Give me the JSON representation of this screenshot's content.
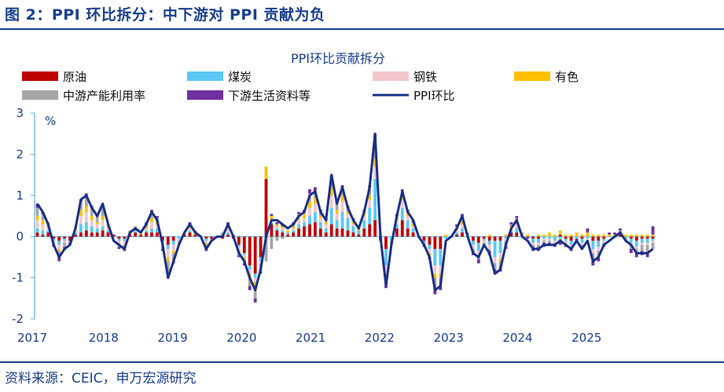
{
  "figure_title": "图 2：PPI 环比拆分：中下游对 PPI 贡献为负",
  "source_note": "资料来源：CEIC，申万宏源研究",
  "chart_data": {
    "type": "bar",
    "title": "PPI环比贡献拆分",
    "ylabel": "%",
    "ylim": [
      -2,
      3
    ],
    "yticks": [
      3,
      2,
      1,
      0,
      -1,
      -2
    ],
    "x_labels": [
      "2017",
      "2018",
      "2019",
      "2020",
      "2021",
      "2022",
      "2023",
      "2024",
      "2025"
    ],
    "stacked": true,
    "series_meta": [
      {
        "key": "crude",
        "name": "原油",
        "color": "#c00000",
        "style": "bar"
      },
      {
        "key": "coal",
        "name": "煤炭",
        "color": "#5bc8f5",
        "style": "bar"
      },
      {
        "key": "steel",
        "name": "钢铁",
        "color": "#f4c7cc",
        "style": "bar"
      },
      {
        "key": "nonferrous",
        "name": "有色",
        "color": "#ffc000",
        "style": "bar"
      },
      {
        "key": "midstream",
        "name": "中游产能利用率",
        "color": "#a6a6a6",
        "style": "bar"
      },
      {
        "key": "downstream",
        "name": "下游生活资料等",
        "color": "#7030a0",
        "style": "bar"
      },
      {
        "key": "ppi",
        "name": "PPI环比",
        "color": "#1a3088",
        "style": "line"
      }
    ],
    "ppi_mom": [
      0.8,
      0.6,
      0.3,
      -0.2,
      -0.5,
      -0.3,
      -0.2,
      0.2,
      0.9,
      1.0,
      0.7,
      0.5,
      0.8,
      0.3,
      -0.1,
      -0.2,
      -0.3,
      0.1,
      0.2,
      0.1,
      0.3,
      0.6,
      0.4,
      -0.2,
      -1.0,
      -0.6,
      -0.2,
      0.1,
      0.3,
      0.1,
      0.0,
      -0.3,
      -0.1,
      0.0,
      0.0,
      0.3,
      0.0,
      -0.4,
      -0.6,
      -1.0,
      -1.3,
      -0.8,
      0.0,
      0.4,
      0.4,
      0.3,
      0.2,
      0.3,
      0.5,
      0.6,
      1.0,
      1.1,
      0.6,
      0.4,
      1.5,
      0.8,
      1.2,
      0.7,
      0.4,
      0.2,
      0.6,
      1.2,
      2.5,
      0.0,
      -1.2,
      -0.2,
      0.5,
      1.1,
      0.6,
      0.4,
      0.0,
      -0.2,
      -0.5,
      -1.3,
      -1.2,
      -0.1,
      0.0,
      0.2,
      0.5,
      0.0,
      -0.4,
      -0.5,
      -0.2,
      -0.4,
      -0.9,
      -0.8,
      -0.2,
      0.2,
      0.4,
      0.0,
      -0.1,
      -0.3,
      -0.3,
      -0.2,
      -0.2,
      -0.2,
      -0.1,
      -0.2,
      -0.3,
      -0.1,
      -0.3,
      -0.1,
      -0.6,
      -0.5,
      -0.2,
      -0.1,
      0.0,
      0.1,
      -0.1,
      -0.2,
      -0.4,
      -0.4,
      -0.4,
      -0.3
    ],
    "bars": {
      "crude": [
        0.1,
        0.05,
        0.1,
        -0.05,
        -0.1,
        -0.05,
        -0.1,
        0.05,
        0.1,
        0.15,
        0.1,
        0.1,
        0.15,
        0.1,
        0.05,
        -0.05,
        -0.05,
        0.05,
        0.1,
        0.05,
        0.1,
        0.1,
        0.1,
        -0.1,
        -0.2,
        -0.1,
        0.0,
        0.05,
        0.1,
        0.05,
        0.0,
        -0.05,
        -0.05,
        0.0,
        -0.05,
        0.05,
        -0.05,
        -0.2,
        -0.4,
        -0.7,
        -0.9,
        -0.5,
        1.4,
        0.3,
        0.15,
        0.1,
        0.05,
        0.1,
        0.2,
        0.25,
        0.3,
        0.35,
        0.2,
        0.1,
        0.3,
        0.2,
        0.2,
        0.15,
        0.1,
        0.05,
        0.2,
        0.3,
        0.4,
        -0.1,
        -0.3,
        0.0,
        0.2,
        0.4,
        0.2,
        0.1,
        0.0,
        -0.1,
        -0.2,
        -0.3,
        -0.3,
        0.0,
        0.0,
        0.05,
        0.1,
        0.0,
        -0.1,
        -0.15,
        -0.05,
        -0.1,
        -0.1,
        -0.1,
        0.0,
        0.1,
        0.1,
        0.0,
        0.0,
        -0.05,
        -0.05,
        0.0,
        0.0,
        0.0,
        0.05,
        -0.05,
        -0.1,
        0.0,
        -0.05,
        0.0,
        -0.1,
        -0.1,
        -0.05,
        0.0,
        0.0,
        0.05,
        0.0,
        -0.05,
        -0.1,
        -0.05,
        -0.05,
        -0.05
      ],
      "coal": [
        0.1,
        0.1,
        0.05,
        -0.05,
        -0.1,
        -0.05,
        0.0,
        0.05,
        0.2,
        0.2,
        0.15,
        0.1,
        0.1,
        0.05,
        0.0,
        -0.05,
        -0.05,
        0.0,
        0.05,
        0.0,
        0.05,
        0.1,
        0.1,
        -0.05,
        -0.1,
        -0.1,
        -0.05,
        0.0,
        0.05,
        0.0,
        0.0,
        -0.05,
        0.0,
        0.0,
        0.0,
        0.05,
        0.0,
        -0.05,
        -0.05,
        -0.1,
        -0.1,
        -0.1,
        0.0,
        0.05,
        0.05,
        0.05,
        0.05,
        0.05,
        0.1,
        0.1,
        0.2,
        0.25,
        0.15,
        0.1,
        0.4,
        0.2,
        0.4,
        0.3,
        0.15,
        0.1,
        0.2,
        0.4,
        1.0,
        0.0,
        -0.4,
        -0.1,
        0.1,
        0.3,
        0.2,
        0.1,
        0.0,
        -0.05,
        -0.1,
        -0.4,
        -0.4,
        -0.05,
        0.0,
        0.05,
        0.1,
        0.0,
        -0.1,
        -0.2,
        -0.05,
        -0.1,
        -0.4,
        -0.3,
        -0.05,
        0.05,
        0.1,
        0.0,
        0.0,
        -0.1,
        -0.1,
        -0.05,
        -0.05,
        -0.1,
        -0.05,
        -0.05,
        -0.1,
        -0.05,
        -0.1,
        -0.05,
        -0.2,
        -0.15,
        -0.05,
        0.0,
        0.0,
        0.0,
        -0.05,
        -0.1,
        -0.15,
        -0.1,
        -0.1,
        -0.05
      ],
      "steel": [
        0.2,
        0.15,
        0.05,
        -0.05,
        -0.1,
        -0.05,
        0.0,
        0.05,
        0.2,
        0.25,
        0.15,
        0.1,
        0.15,
        0.05,
        -0.05,
        -0.05,
        -0.1,
        0.0,
        0.0,
        0.0,
        0.05,
        0.15,
        0.1,
        -0.05,
        -0.2,
        -0.15,
        -0.05,
        0.0,
        0.05,
        0.0,
        0.0,
        -0.05,
        0.0,
        0.0,
        0.0,
        0.1,
        0.0,
        -0.05,
        -0.05,
        -0.1,
        -0.1,
        -0.05,
        0.0,
        0.05,
        0.05,
        0.05,
        0.0,
        0.05,
        0.1,
        0.1,
        0.2,
        0.2,
        0.1,
        0.1,
        0.3,
        0.15,
        0.25,
        0.1,
        0.05,
        0.0,
        0.1,
        0.2,
        0.3,
        0.0,
        -0.2,
        0.0,
        0.1,
        0.2,
        0.1,
        0.05,
        0.0,
        0.0,
        -0.1,
        -0.2,
        -0.2,
        0.0,
        0.0,
        0.05,
        0.1,
        0.0,
        -0.1,
        -0.1,
        -0.05,
        -0.1,
        -0.15,
        -0.15,
        -0.05,
        0.05,
        0.1,
        0.0,
        0.0,
        -0.05,
        -0.05,
        -0.05,
        -0.05,
        -0.05,
        0.0,
        -0.05,
        -0.05,
        0.0,
        -0.05,
        0.0,
        -0.1,
        -0.1,
        -0.05,
        0.0,
        0.0,
        0.0,
        0.0,
        -0.05,
        -0.05,
        -0.05,
        -0.05,
        -0.05
      ],
      "nonferrous": [
        0.1,
        0.1,
        0.05,
        0.0,
        -0.05,
        0.0,
        0.0,
        0.05,
        0.15,
        0.15,
        0.1,
        0.05,
        0.1,
        0.05,
        0.0,
        -0.05,
        -0.05,
        0.05,
        0.05,
        0.05,
        0.05,
        0.1,
        0.05,
        -0.05,
        -0.1,
        -0.05,
        0.0,
        0.05,
        0.05,
        0.05,
        0.0,
        -0.05,
        0.0,
        0.0,
        0.05,
        0.05,
        0.0,
        -0.05,
        -0.05,
        -0.1,
        -0.1,
        0.0,
        0.3,
        0.1,
        0.05,
        0.05,
        0.05,
        0.05,
        0.1,
        0.1,
        0.15,
        0.15,
        0.05,
        0.05,
        0.2,
        0.1,
        0.15,
        0.05,
        0.05,
        0.05,
        0.05,
        0.1,
        0.2,
        0.0,
        -0.1,
        0.0,
        0.05,
        0.1,
        0.05,
        0.05,
        0.0,
        0.0,
        -0.05,
        -0.1,
        -0.1,
        0.05,
        0.0,
        0.05,
        0.1,
        0.05,
        0.0,
        -0.05,
        0.0,
        0.05,
        0.0,
        -0.05,
        0.05,
        0.05,
        0.1,
        0.05,
        0.05,
        0.0,
        0.05,
        0.05,
        0.1,
        0.05,
        0.1,
        0.05,
        0.05,
        0.1,
        0.05,
        0.1,
        0.05,
        0.05,
        0.05,
        0.05,
        0.05,
        0.05,
        0.05,
        0.05,
        0.05,
        0.05,
        0.05,
        0.05
      ],
      "midstream": [
        0.2,
        0.15,
        0.1,
        -0.05,
        -0.15,
        -0.1,
        -0.05,
        0.05,
        0.2,
        0.25,
        0.2,
        0.15,
        0.2,
        0.05,
        0.0,
        -0.05,
        -0.05,
        0.05,
        0.05,
        0.05,
        0.05,
        0.15,
        0.1,
        -0.05,
        -0.3,
        -0.2,
        -0.1,
        0.0,
        0.05,
        0.05,
        0.0,
        -0.1,
        -0.05,
        0.0,
        0.05,
        0.05,
        0.05,
        -0.1,
        -0.1,
        -0.2,
        -0.3,
        -0.2,
        -0.6,
        -0.3,
        -0.1,
        -0.05,
        0.0,
        0.05,
        0.05,
        0.05,
        0.2,
        0.15,
        0.1,
        0.05,
        0.2,
        0.15,
        0.15,
        0.1,
        0.05,
        0.05,
        0.05,
        0.2,
        0.4,
        0.05,
        -0.2,
        -0.1,
        0.05,
        0.1,
        0.05,
        0.05,
        0.0,
        -0.05,
        -0.05,
        -0.3,
        -0.2,
        0.0,
        0.0,
        0.05,
        0.1,
        0.05,
        -0.05,
        -0.05,
        -0.05,
        -0.05,
        -0.15,
        -0.15,
        -0.1,
        0.05,
        0.05,
        0.05,
        0.0,
        -0.05,
        -0.05,
        -0.05,
        -0.05,
        -0.05,
        -0.05,
        -0.05,
        -0.05,
        0.0,
        -0.05,
        0.0,
        -0.2,
        -0.15,
        -0.05,
        0.0,
        0.0,
        0.05,
        -0.05,
        -0.1,
        -0.1,
        -0.15,
        -0.2,
        -0.15
      ],
      "downstream": [
        0.1,
        0.05,
        0.0,
        -0.05,
        -0.1,
        -0.05,
        -0.05,
        0.0,
        0.05,
        0.05,
        0.05,
        0.05,
        0.05,
        0.0,
        0.0,
        -0.05,
        -0.05,
        0.0,
        0.0,
        0.0,
        0.05,
        0.05,
        0.05,
        -0.05,
        -0.1,
        -0.05,
        0.0,
        0.0,
        0.05,
        0.0,
        0.0,
        -0.05,
        0.0,
        0.0,
        0.0,
        0.05,
        0.0,
        -0.05,
        -0.05,
        -0.1,
        -0.1,
        -0.05,
        0.0,
        0.05,
        0.05,
        0.05,
        0.0,
        0.05,
        0.05,
        0.05,
        0.1,
        0.1,
        0.05,
        0.05,
        0.1,
        0.05,
        0.1,
        0.05,
        0.05,
        0.0,
        0.05,
        0.05,
        0.2,
        0.0,
        -0.05,
        0.0,
        0.05,
        0.05,
        0.05,
        0.05,
        0.0,
        -0.05,
        -0.05,
        -0.1,
        -0.1,
        0.0,
        0.0,
        0.05,
        0.05,
        0.0,
        -0.1,
        -0.1,
        -0.05,
        -0.1,
        -0.1,
        -0.1,
        -0.1,
        0.05,
        0.05,
        0.0,
        -0.05,
        -0.1,
        -0.1,
        -0.1,
        -0.05,
        -0.05,
        -0.1,
        -0.05,
        -0.05,
        -0.05,
        -0.05,
        0.1,
        -0.1,
        -0.1,
        -0.05,
        0.05,
        0.05,
        0.05,
        0.0,
        -0.1,
        -0.1,
        -0.1,
        -0.1,
        0.2
      ]
    }
  }
}
